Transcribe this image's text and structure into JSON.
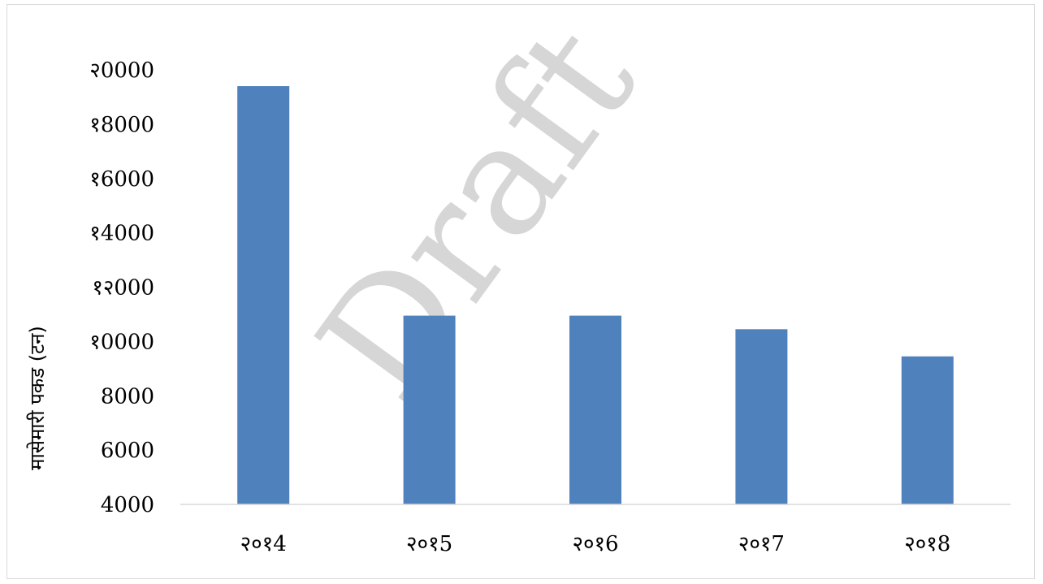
{
  "chart_data": {
    "type": "bar",
    "categories": [
      "२०१4",
      "२०१5",
      "२०१6",
      "२०१7",
      "२०१8"
    ],
    "values": [
      19400,
      10950,
      10950,
      10450,
      9450
    ],
    "ylabel": "मासेमारी पकड (टन)",
    "xlabel": "",
    "ylim": [
      4000,
      20000
    ],
    "yticks": [
      4000,
      6000,
      8000,
      10000,
      12000,
      14000,
      16000,
      18000,
      20000
    ],
    "ytick_labels": [
      "4000",
      "6000",
      "8000",
      "१0000",
      "१२000",
      "१4000",
      "१6000",
      "१8000",
      "२0000"
    ],
    "bar_color": "#4f81bd",
    "grid": false,
    "legend": "none",
    "watermark": "Draft"
  }
}
